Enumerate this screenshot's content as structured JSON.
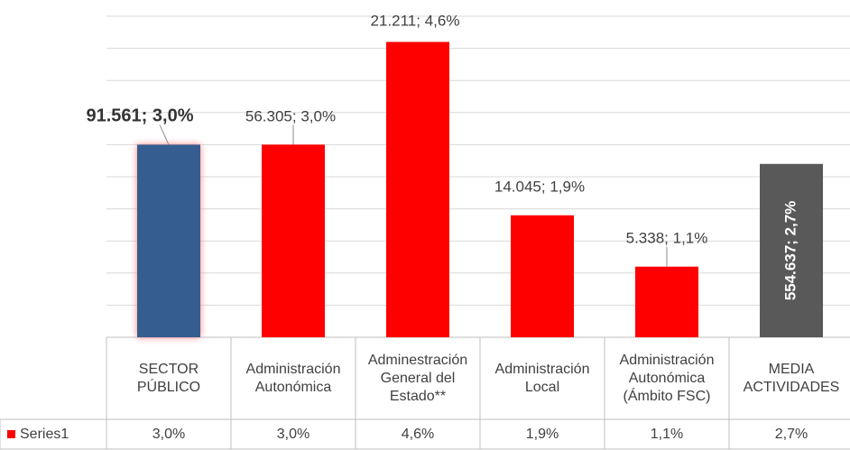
{
  "chart_data": {
    "type": "bar",
    "categories": [
      "SECTOR PÚBLICO",
      "Administración Autonómica",
      "Adminestración General del Estado**",
      "Administración Local",
      "Administración Autonómica (Ámbito FSC)",
      "MEDIA ACTIVIDADES"
    ],
    "series": [
      {
        "name": "Series1",
        "color": "#ff0000",
        "colors": [
          "#365d8f",
          "#ff0000",
          "#ff0000",
          "#ff0000",
          "#ff0000",
          "#595959"
        ],
        "values": [
          3.0,
          3.0,
          4.6,
          1.9,
          1.1,
          2.7
        ],
        "value_labels": [
          "91.561; 3,0%",
          "56.305; 3,0%",
          "21.211; 4,6%",
          "14.045; 1,9%",
          "5.338; 1,1%",
          "554.637; 2,7%"
        ],
        "table_labels": [
          "3,0%",
          "3,0%",
          "4,6%",
          "1,9%",
          "1,1%",
          "2,7%"
        ]
      }
    ],
    "ylim": [
      0,
      5
    ],
    "yticks": [
      0,
      0.5,
      1,
      1.5,
      2,
      2.5,
      3,
      3.5,
      4,
      4.5,
      5
    ],
    "grid": true
  }
}
